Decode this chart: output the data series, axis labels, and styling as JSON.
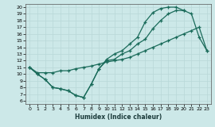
{
  "xlabel": "Humidex (Indice chaleur)",
  "bg_color": "#cce8e8",
  "grid_color": "#aacccc",
  "line_color": "#1a6b5a",
  "xlim": [
    -0.5,
    23.5
  ],
  "ylim": [
    5.5,
    20.5
  ],
  "xticks": [
    0,
    1,
    2,
    3,
    4,
    5,
    6,
    7,
    8,
    9,
    10,
    11,
    12,
    13,
    14,
    15,
    16,
    17,
    18,
    19,
    20,
    21,
    22,
    23
  ],
  "yticks": [
    6,
    7,
    8,
    9,
    10,
    11,
    12,
    13,
    14,
    15,
    16,
    17,
    18,
    19,
    20
  ],
  "line1": {
    "x": [
      0,
      1,
      2,
      3,
      4,
      5,
      6,
      7,
      8,
      9,
      10,
      11,
      12,
      13,
      14,
      15,
      16,
      17,
      18,
      19,
      20,
      21,
      22,
      23
    ],
    "y": [
      11,
      10.2,
      10.2,
      10.2,
      10.5,
      10.5,
      10.8,
      11.0,
      11.2,
      11.5,
      11.8,
      12.0,
      12.2,
      12.5,
      13.0,
      13.5,
      14.0,
      14.5,
      15.0,
      15.5,
      16.0,
      16.5,
      17.0,
      13.5
    ]
  },
  "line2": {
    "x": [
      0,
      1,
      2,
      3,
      4,
      5,
      6,
      7,
      8,
      9,
      10,
      11,
      12,
      13,
      14,
      15,
      16,
      17,
      18,
      19,
      20,
      21,
      22,
      23
    ],
    "y": [
      11,
      10,
      9.2,
      8.0,
      7.8,
      7.5,
      6.8,
      6.5,
      8.5,
      10.8,
      12.0,
      12.2,
      13.0,
      13.5,
      14.5,
      15.2,
      16.8,
      18.0,
      19.0,
      19.5,
      19.5,
      19.0,
      15.5,
      13.5
    ]
  },
  "line3": {
    "x": [
      0,
      1,
      2,
      3,
      4,
      5,
      6,
      7,
      8,
      9,
      10,
      11,
      12,
      13,
      14,
      15,
      16,
      17,
      18,
      19,
      20
    ],
    "y": [
      11,
      10,
      9.2,
      8.0,
      7.8,
      7.5,
      6.8,
      6.5,
      8.5,
      10.8,
      12.2,
      13.0,
      13.5,
      14.5,
      15.5,
      17.8,
      19.2,
      19.8,
      20.0,
      20.0,
      19.5
    ]
  }
}
